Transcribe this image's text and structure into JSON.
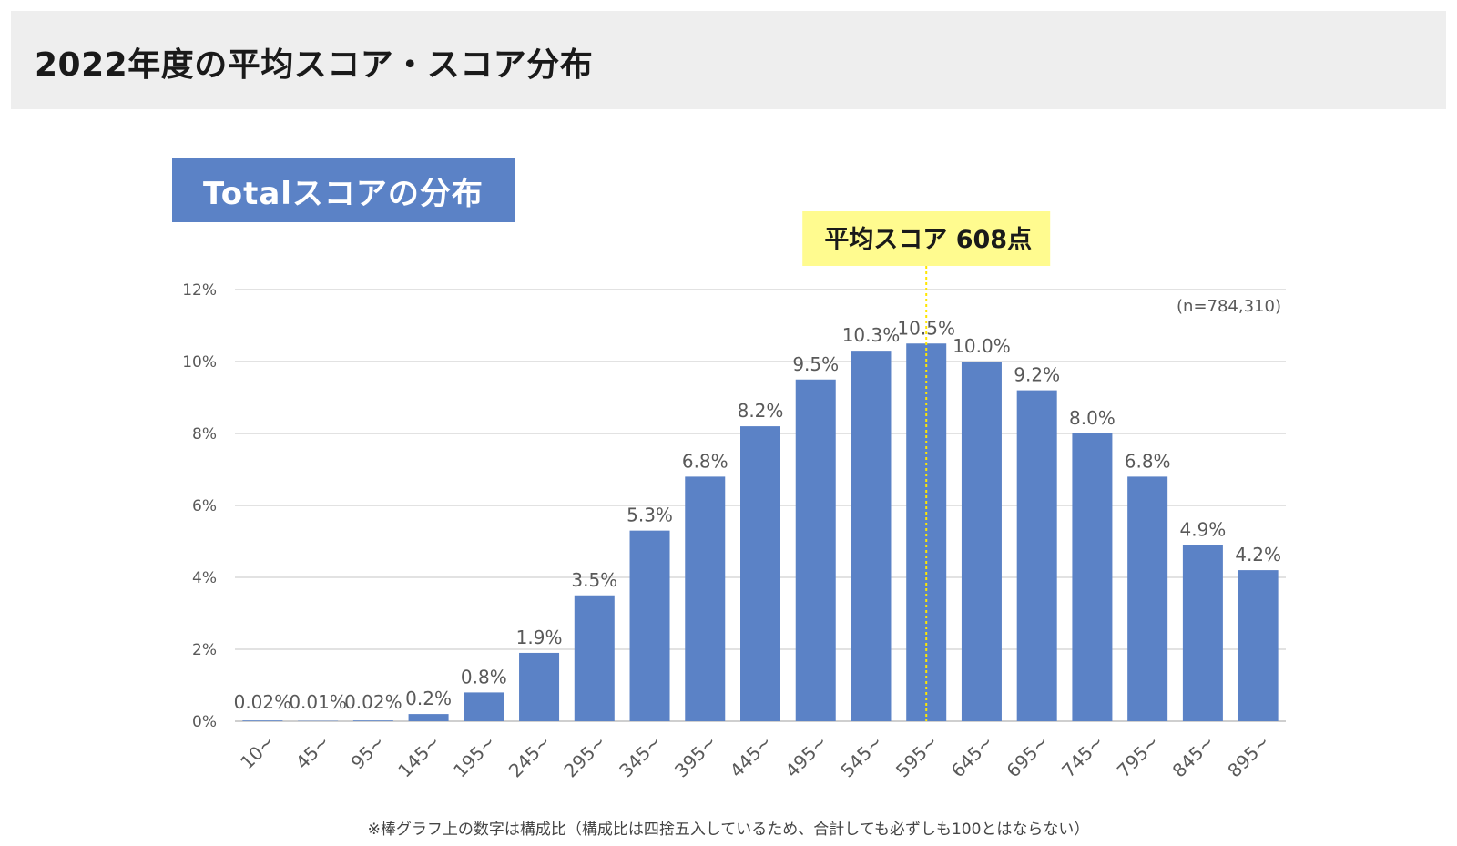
{
  "header": {
    "title": "2022年度の平均スコア・スコア分布"
  },
  "chart_badge": "Totalスコアの分布",
  "average_label": "平均スコア 608点",
  "sample_size": "(n=784,310)",
  "footnote": "※棒グラフ上の数字は構成比（構成比は四捨五入しているため、合計しても必ずしも100とはならない）",
  "colors": {
    "bar": "#5b82c6",
    "average_box": "#fffb8f",
    "average_line": "#ffe600",
    "header_bg": "#eeeeee"
  },
  "chart_data": {
    "type": "bar",
    "categories": [
      "10~",
      "45~",
      "95~",
      "145~",
      "195~",
      "245~",
      "295~",
      "345~",
      "395~",
      "445~",
      "495~",
      "545~",
      "595~",
      "645~",
      "695~",
      "745~",
      "795~",
      "845~",
      "895~"
    ],
    "values": [
      0.02,
      0.01,
      0.02,
      0.2,
      0.8,
      1.9,
      3.5,
      5.3,
      6.8,
      8.2,
      9.5,
      10.3,
      10.5,
      10.0,
      9.2,
      8.0,
      6.8,
      4.9,
      4.2
    ],
    "value_labels": [
      "0.02%",
      "0.01%",
      "0.02%",
      "0.2%",
      "0.8%",
      "1.9%",
      "3.5%",
      "5.3%",
      "6.8%",
      "8.2%",
      "9.5%",
      "10.3%",
      "10.5%",
      "10.0%",
      "9.2%",
      "8.0%",
      "6.8%",
      "4.9%",
      "4.2%"
    ],
    "y_ticks": [
      "0%",
      "2%",
      "4%",
      "6%",
      "8%",
      "10%",
      "12%"
    ],
    "ylim": [
      0,
      12
    ],
    "grid": true,
    "average_marker_category": "595~"
  }
}
